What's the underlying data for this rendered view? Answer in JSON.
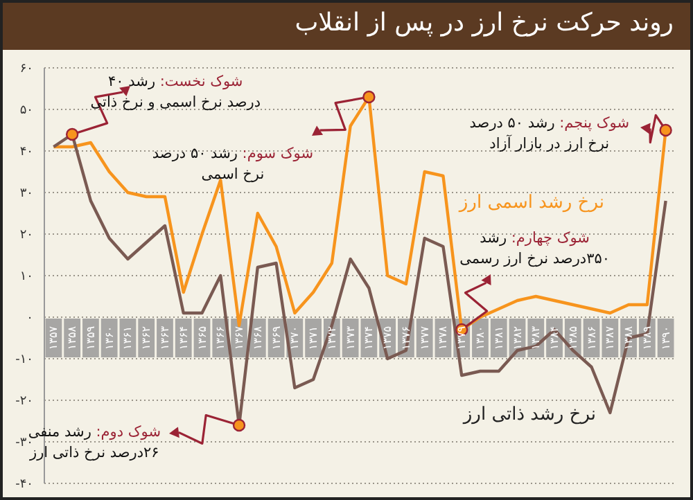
{
  "chart_data": {
    "type": "line",
    "title": "روند حرکت نرخ ارز در پس از انقلاب",
    "categories": [
      "۱۳۵۷",
      "۱۳۵۸",
      "۱۳۵۹",
      "۱۳۶۰",
      "۱۳۶۱",
      "۱۳۶۲",
      "۱۳۶۳",
      "۱۳۶۴",
      "۱۳۶۵",
      "۱۳۶۶",
      "۱۳۶۷",
      "۱۳۶۸",
      "۱۳۶۹",
      "۱۳۷۰",
      "۱۳۷۱",
      "۱۳۷۲",
      "۱۳۷۳",
      "۱۳۷۴",
      "۱۳۷۵",
      "۱۳۷۶",
      "۱۳۷۷",
      "۱۳۷۸",
      "۱۳۷۹",
      "۱۳۸۰",
      "۱۳۸۱",
      "۱۳۸۲",
      "۱۳۸۳",
      "۱۳۸۴",
      "۱۳۸۵",
      "۱۳۸۶",
      "۱۳۸۷",
      "۱۳۸۸",
      "۱۳۸۹",
      "۱۳۹۰"
    ],
    "series": [
      {
        "name": "نرخ رشد اسمی ارز",
        "color": "#f7941d",
        "values": [
          41,
          41,
          42,
          35,
          30,
          29,
          29,
          6,
          20,
          33,
          -2,
          25,
          17,
          1,
          6,
          13,
          46,
          53,
          10,
          8,
          35,
          34,
          -3,
          0,
          2,
          4,
          5,
          4,
          3,
          2,
          1,
          3,
          3,
          45
        ]
      },
      {
        "name": "نرخ رشد ذاتی ارز",
        "color": "#7a5a52",
        "values": [
          41,
          44,
          28,
          19,
          14,
          18,
          22,
          1,
          1,
          10,
          -26,
          12,
          13,
          -17,
          -15,
          -2,
          14,
          7,
          -10,
          -8,
          19,
          17,
          -14,
          -13,
          -13,
          -8,
          -7,
          -3,
          -8,
          -12,
          -23,
          -5,
          -4,
          28
        ]
      }
    ],
    "ylim": [
      -40,
      60
    ],
    "yticks": [
      {
        "value": 60,
        "label": "۶۰"
      },
      {
        "value": 50,
        "label": "۵۰"
      },
      {
        "value": 40,
        "label": "۴۰"
      },
      {
        "value": 30,
        "label": "۳۰"
      },
      {
        "value": 20,
        "label": "۲۰"
      },
      {
        "value": 10,
        "label": "۱۰"
      },
      {
        "value": 0,
        "label": "۰"
      },
      {
        "value": -10,
        "label": "-۱۰"
      },
      {
        "value": -20,
        "label": "-۲۰"
      },
      {
        "value": -30,
        "label": "-۳۰"
      },
      {
        "value": -40,
        "label": "-۴۰"
      }
    ],
    "grid": "y",
    "marker": "none",
    "line_style": "solid",
    "annotations": [
      {
        "text": "شوک نخست: رشد ۴۰\nدرصد نرخ اسمی و نرخ ذاتی",
        "x": "۱۳۵۸",
        "y": 44
      },
      {
        "text": "شوک دوم: رشد منفی\n۲۶درصد نرخ ذاتی ارز",
        "x": "۱۳۶۷",
        "y": -26
      },
      {
        "text": "شوک سوم: رشد ۵۰ درصد\nنرخ اسمی",
        "x": "۱۳۷۴",
        "y": 53
      },
      {
        "text": "شوک چهارم: رشد\n۳۵۰درصد نرخ ارز رسمی",
        "x": "۱۳۷۹",
        "y": -3
      },
      {
        "text": "شوک پنجم: رشد ۵۰ درصد\nنرخ ارز در بازار آزاد",
        "x": "۱۳۹۰",
        "y": 45
      }
    ]
  }
}
